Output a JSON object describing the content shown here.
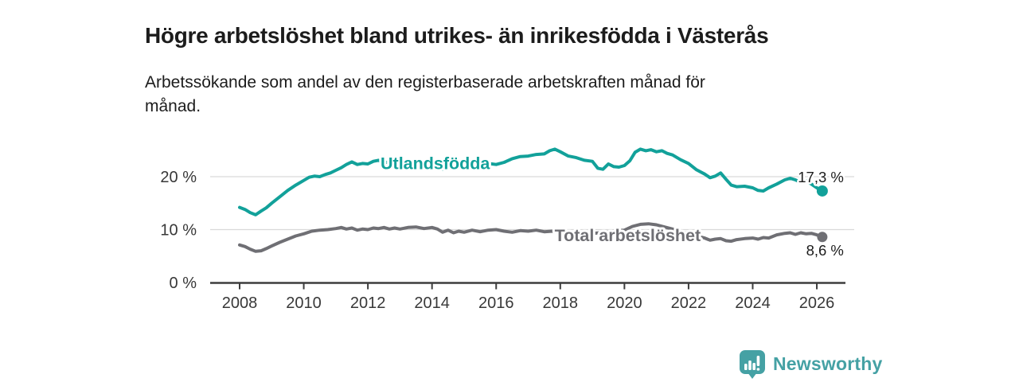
{
  "header": {
    "title": "Högre arbetslöshet bland utrikes- än inrikesfödda i Västerås",
    "subtitle": "Arbetssökande som andel av den registerbaserade arbetskraften månad för\nmånad."
  },
  "branding": {
    "logo_icon": "newsworthy-speech-bubble-bar-chart",
    "logo_text": "Newsworthy",
    "logo_color": "#45a1a4"
  },
  "colors": {
    "foreign_born_line": "#12a19a",
    "total_line": "#6f6f74",
    "gridline": "#d9d9d9",
    "axis_line": "#3d3d3d",
    "axis_text": "#383838",
    "end_label_text": "#1c1c1c"
  },
  "chart_data": {
    "type": "line",
    "title": "Högre arbetslöshet bland utrikes- än inrikesfödda i Västerås",
    "subtitle": "Arbetssökande som andel av den registerbaserade arbetskraften månad för månad.",
    "xlabel": "",
    "ylabel": "",
    "grid": "horizontal-only",
    "legend_position": "inline-labels-on-lines",
    "x_axis": {
      "ticks": [
        2008,
        2010,
        2012,
        2014,
        2016,
        2018,
        2020,
        2022,
        2024,
        2026
      ],
      "range": [
        2007.1,
        2026.9
      ]
    },
    "y_axis": {
      "ticks": [
        {
          "value": 0,
          "label": "0 %"
        },
        {
          "value": 10,
          "label": "10 %"
        },
        {
          "value": 20,
          "label": "20 %"
        }
      ],
      "range": [
        0,
        27
      ]
    },
    "series": [
      {
        "name": "Utlandsfödda",
        "color": "#12a19a",
        "end_label": "17,3 %",
        "end_value": 17.3,
        "label_year": 2014.1,
        "label_value": 22.6,
        "points": [
          [
            2008.0,
            14.2
          ],
          [
            2008.17,
            13.8
          ],
          [
            2008.33,
            13.2
          ],
          [
            2008.5,
            12.8
          ],
          [
            2008.67,
            13.5
          ],
          [
            2008.83,
            14.1
          ],
          [
            2009.0,
            15.0
          ],
          [
            2009.25,
            16.2
          ],
          [
            2009.5,
            17.4
          ],
          [
            2009.75,
            18.4
          ],
          [
            2010.0,
            19.3
          ],
          [
            2010.17,
            19.9
          ],
          [
            2010.33,
            20.1
          ],
          [
            2010.5,
            20.0
          ],
          [
            2010.67,
            20.4
          ],
          [
            2010.83,
            20.7
          ],
          [
            2011.0,
            21.2
          ],
          [
            2011.17,
            21.7
          ],
          [
            2011.33,
            22.3
          ],
          [
            2011.5,
            22.8
          ],
          [
            2011.67,
            22.3
          ],
          [
            2011.83,
            22.5
          ],
          [
            2012.0,
            22.4
          ],
          [
            2012.17,
            22.9
          ],
          [
            2012.33,
            23.1
          ],
          [
            2012.5,
            22.6
          ],
          [
            2012.67,
            22.8
          ],
          [
            2012.83,
            22.7
          ],
          [
            2013.0,
            22.5
          ],
          [
            2013.25,
            22.8
          ],
          [
            2013.5,
            23.0
          ],
          [
            2013.75,
            22.7
          ],
          [
            2014.0,
            23.1
          ],
          [
            2014.17,
            22.6
          ],
          [
            2014.33,
            21.4
          ],
          [
            2014.5,
            21.8
          ],
          [
            2014.75,
            22.5
          ],
          [
            2015.0,
            22.7
          ],
          [
            2015.25,
            22.4
          ],
          [
            2015.5,
            22.2
          ],
          [
            2015.75,
            22.5
          ],
          [
            2016.0,
            22.3
          ],
          [
            2016.25,
            22.7
          ],
          [
            2016.5,
            23.4
          ],
          [
            2016.75,
            23.8
          ],
          [
            2017.0,
            23.9
          ],
          [
            2017.25,
            24.2
          ],
          [
            2017.5,
            24.3
          ],
          [
            2017.67,
            24.9
          ],
          [
            2017.83,
            25.2
          ],
          [
            2018.0,
            24.7
          ],
          [
            2018.25,
            23.9
          ],
          [
            2018.5,
            23.6
          ],
          [
            2018.75,
            23.1
          ],
          [
            2019.0,
            22.9
          ],
          [
            2019.17,
            21.6
          ],
          [
            2019.33,
            21.4
          ],
          [
            2019.5,
            22.4
          ],
          [
            2019.67,
            21.9
          ],
          [
            2019.83,
            21.8
          ],
          [
            2020.0,
            22.1
          ],
          [
            2020.17,
            23.0
          ],
          [
            2020.33,
            24.6
          ],
          [
            2020.5,
            25.2
          ],
          [
            2020.67,
            24.9
          ],
          [
            2020.83,
            25.1
          ],
          [
            2021.0,
            24.7
          ],
          [
            2021.17,
            24.9
          ],
          [
            2021.33,
            24.4
          ],
          [
            2021.5,
            24.1
          ],
          [
            2021.75,
            23.2
          ],
          [
            2022.0,
            22.5
          ],
          [
            2022.25,
            21.3
          ],
          [
            2022.5,
            20.5
          ],
          [
            2022.67,
            19.8
          ],
          [
            2022.83,
            20.1
          ],
          [
            2023.0,
            20.7
          ],
          [
            2023.17,
            19.5
          ],
          [
            2023.33,
            18.4
          ],
          [
            2023.5,
            18.1
          ],
          [
            2023.75,
            18.2
          ],
          [
            2024.0,
            17.9
          ],
          [
            2024.17,
            17.4
          ],
          [
            2024.33,
            17.3
          ],
          [
            2024.5,
            17.9
          ],
          [
            2024.75,
            18.6
          ],
          [
            2025.0,
            19.4
          ],
          [
            2025.17,
            19.7
          ],
          [
            2025.33,
            19.4
          ],
          [
            2025.5,
            18.9
          ],
          [
            2025.67,
            19.2
          ],
          [
            2025.83,
            18.6
          ],
          [
            2026.0,
            17.9
          ],
          [
            2026.17,
            17.3
          ]
        ]
      },
      {
        "name": "Total arbetslöshet",
        "color": "#6f6f74",
        "end_label": "8,6 %",
        "end_value": 8.6,
        "label_year": 2020.1,
        "label_value": 9.0,
        "points": [
          [
            2008.0,
            7.1
          ],
          [
            2008.17,
            6.8
          ],
          [
            2008.33,
            6.3
          ],
          [
            2008.5,
            5.9
          ],
          [
            2008.67,
            6.0
          ],
          [
            2008.83,
            6.4
          ],
          [
            2009.0,
            6.9
          ],
          [
            2009.25,
            7.6
          ],
          [
            2009.5,
            8.2
          ],
          [
            2009.75,
            8.8
          ],
          [
            2010.0,
            9.2
          ],
          [
            2010.25,
            9.7
          ],
          [
            2010.5,
            9.9
          ],
          [
            2010.75,
            10.0
          ],
          [
            2011.0,
            10.2
          ],
          [
            2011.17,
            10.4
          ],
          [
            2011.33,
            10.1
          ],
          [
            2011.5,
            10.3
          ],
          [
            2011.67,
            9.9
          ],
          [
            2011.83,
            10.1
          ],
          [
            2012.0,
            10.0
          ],
          [
            2012.17,
            10.3
          ],
          [
            2012.33,
            10.2
          ],
          [
            2012.5,
            10.4
          ],
          [
            2012.67,
            10.1
          ],
          [
            2012.83,
            10.3
          ],
          [
            2013.0,
            10.1
          ],
          [
            2013.25,
            10.4
          ],
          [
            2013.5,
            10.5
          ],
          [
            2013.75,
            10.2
          ],
          [
            2014.0,
            10.4
          ],
          [
            2014.17,
            10.1
          ],
          [
            2014.33,
            9.5
          ],
          [
            2014.5,
            9.9
          ],
          [
            2014.67,
            9.4
          ],
          [
            2014.83,
            9.7
          ],
          [
            2015.0,
            9.5
          ],
          [
            2015.25,
            9.9
          ],
          [
            2015.5,
            9.6
          ],
          [
            2015.75,
            9.9
          ],
          [
            2016.0,
            10.0
          ],
          [
            2016.25,
            9.7
          ],
          [
            2016.5,
            9.5
          ],
          [
            2016.75,
            9.8
          ],
          [
            2017.0,
            9.7
          ],
          [
            2017.25,
            9.9
          ],
          [
            2017.5,
            9.6
          ],
          [
            2017.75,
            9.7
          ],
          [
            2018.0,
            9.6
          ],
          [
            2018.25,
            9.5
          ],
          [
            2018.5,
            9.4
          ],
          [
            2018.75,
            9.5
          ],
          [
            2019.0,
            9.3
          ],
          [
            2019.25,
            9.4
          ],
          [
            2019.5,
            9.6
          ],
          [
            2019.75,
            9.8
          ],
          [
            2020.0,
            9.9
          ],
          [
            2020.25,
            10.6
          ],
          [
            2020.5,
            11.0
          ],
          [
            2020.75,
            11.1
          ],
          [
            2021.0,
            10.9
          ],
          [
            2021.25,
            10.5
          ],
          [
            2021.5,
            10.1
          ],
          [
            2021.75,
            9.7
          ],
          [
            2022.0,
            9.2
          ],
          [
            2022.25,
            8.8
          ],
          [
            2022.5,
            8.4
          ],
          [
            2022.67,
            8.0
          ],
          [
            2022.83,
            8.2
          ],
          [
            2023.0,
            8.3
          ],
          [
            2023.17,
            7.9
          ],
          [
            2023.33,
            7.8
          ],
          [
            2023.5,
            8.1
          ],
          [
            2023.75,
            8.3
          ],
          [
            2024.0,
            8.4
          ],
          [
            2024.17,
            8.2
          ],
          [
            2024.33,
            8.5
          ],
          [
            2024.5,
            8.4
          ],
          [
            2024.75,
            9.0
          ],
          [
            2025.0,
            9.3
          ],
          [
            2025.17,
            9.4
          ],
          [
            2025.33,
            9.1
          ],
          [
            2025.5,
            9.4
          ],
          [
            2025.67,
            9.2
          ],
          [
            2025.83,
            9.3
          ],
          [
            2026.0,
            9.0
          ],
          [
            2026.17,
            8.6
          ]
        ]
      }
    ]
  }
}
